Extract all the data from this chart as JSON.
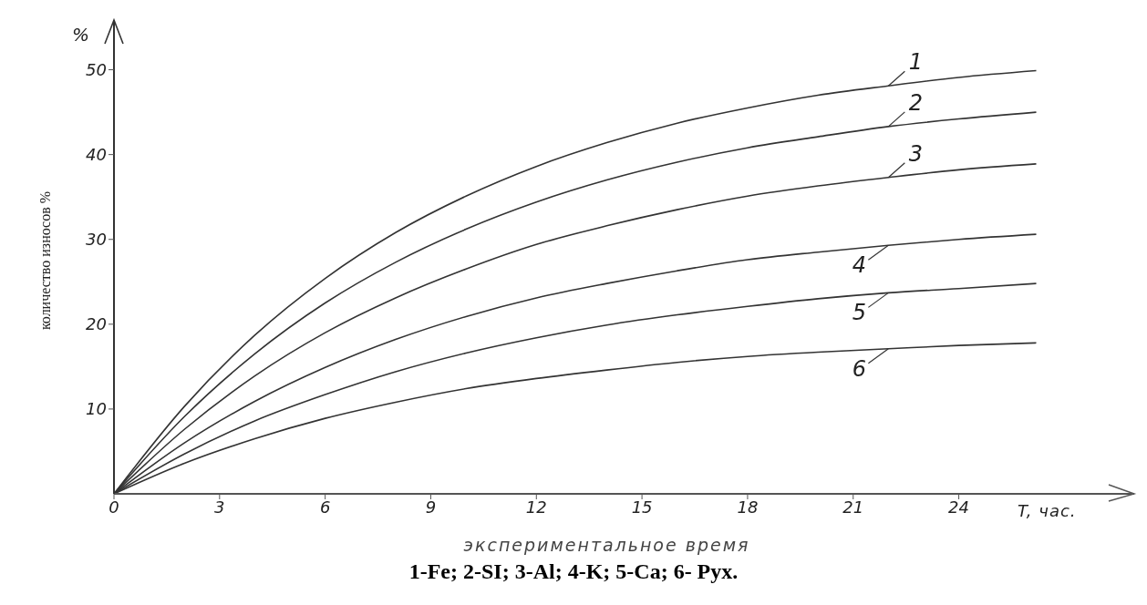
{
  "chart_data": {
    "type": "line",
    "xlabel": "экспериментальное время",
    "ylabel": "количество износов %",
    "annotations": [
      "%",
      "T, час.",
      "1-Fe; 2-SI; 3-Al; 4-K; 5-Ca; 6- Рух."
    ],
    "x": [
      0,
      2,
      4,
      6,
      8,
      10,
      12,
      14,
      16,
      18,
      20,
      22,
      24,
      26.2
    ],
    "series": [
      {
        "name": "1",
        "color": "#333333",
        "values": [
          0,
          10.3,
          18.7,
          25.4,
          30.8,
          35.1,
          38.6,
          41.4,
          43.7,
          45.5,
          47.0,
          48.1,
          49.1,
          49.9
        ]
      },
      {
        "name": "2",
        "color": "#333333",
        "values": [
          0,
          9.1,
          16.5,
          22.5,
          27.3,
          31.2,
          34.4,
          37.0,
          39.1,
          40.8,
          42.1,
          43.3,
          44.2,
          45.0
        ]
      },
      {
        "name": "3",
        "color": "#333333",
        "values": [
          0,
          7.6,
          13.9,
          19.0,
          23.1,
          26.5,
          29.4,
          31.6,
          33.5,
          35.1,
          36.3,
          37.3,
          38.2,
          38.9
        ]
      },
      {
        "name": "4",
        "color": "#333333",
        "values": [
          0,
          6.0,
          10.9,
          14.9,
          18.2,
          20.9,
          23.1,
          24.8,
          26.3,
          27.6,
          28.5,
          29.3,
          30.0,
          30.6
        ]
      },
      {
        "name": "5",
        "color": "#333333",
        "values": [
          0,
          4.7,
          8.6,
          11.7,
          14.4,
          16.6,
          18.4,
          19.9,
          21.1,
          22.1,
          23.0,
          23.7,
          24.2,
          24.8
        ]
      },
      {
        "name": "6",
        "color": "#333333",
        "values": [
          0,
          3.6,
          6.5,
          8.9,
          10.8,
          12.4,
          13.6,
          14.6,
          15.5,
          16.2,
          16.7,
          17.1,
          17.5,
          17.8
        ]
      }
    ],
    "xlim": [
      0,
      28
    ],
    "xticks": [
      0,
      3,
      6,
      9,
      12,
      15,
      18,
      21,
      24
    ],
    "ylim": [
      0,
      55
    ],
    "yticks": [
      10,
      20,
      30,
      40,
      50
    ],
    "grid": false,
    "legend": "right",
    "marker": "none",
    "line_style": "solid"
  }
}
